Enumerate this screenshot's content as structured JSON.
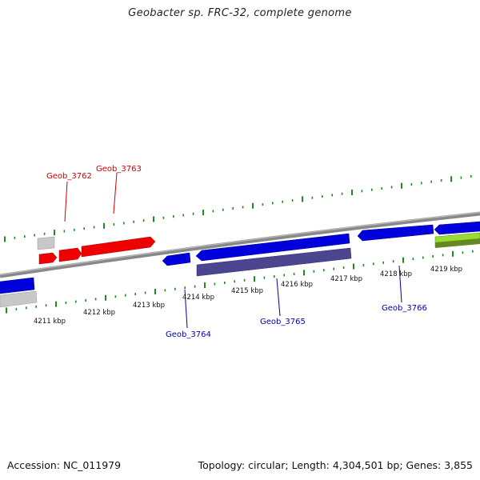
{
  "title": "Geobacter sp. FRC-32, complete genome",
  "footer": {
    "accession": "Accession: NC_011979",
    "summary": "Topology: circular; Length: 4,304,501 bp; Genes: 3,855"
  },
  "colors": {
    "forward_gene": "#ee0000",
    "reverse_gene": "#0000dd",
    "pseudo_gene": "#c4c4c4",
    "rrna_gene": "#4c4690",
    "feature_green": "#99dd33",
    "tick": "#228822",
    "backbone": "#888888"
  },
  "kbp_labels": [
    "4211 kbp",
    "4212 kbp",
    "4213 kbp",
    "4214 kbp",
    "4215 kbp",
    "4216 kbp",
    "4217 kbp",
    "4218 kbp",
    "4219 kbp"
  ],
  "gene_labels": [
    {
      "name": "Geob_3762",
      "strand": "forward"
    },
    {
      "name": "Geob_3763",
      "strand": "forward"
    },
    {
      "name": "Geob_3764",
      "strand": "reverse"
    },
    {
      "name": "Geob_3765",
      "strand": "reverse"
    },
    {
      "name": "Geob_3766",
      "strand": "reverse"
    }
  ]
}
